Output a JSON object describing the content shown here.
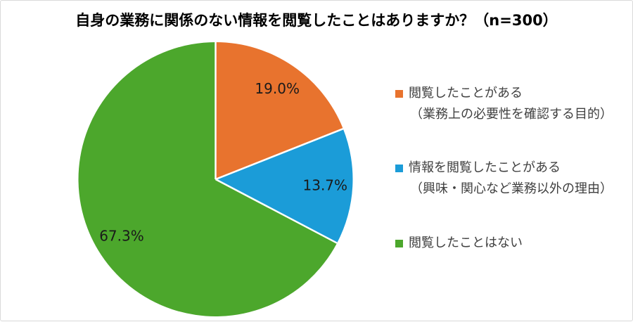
{
  "chart_data": {
    "type": "pie",
    "title": "自身の業務に関係のない情報を閲覧したことはありますか？（n=300）",
    "n": 300,
    "start_angle_deg_from_top": 0,
    "direction": "clockwise",
    "legend_position": "right",
    "background_color": "#ffffff",
    "border_color": "#d9d9d9",
    "slices": [
      {
        "legend_label": "閲覧したことがある",
        "legend_sublabel": "（業務上の必要性を確認する目的）",
        "value_pct": 19.0,
        "data_label": "19.0%",
        "color": "#E8732E"
      },
      {
        "legend_label": "情報を閲覧したことがある",
        "legend_sublabel": "（興味・関心など業務以外の理由）",
        "value_pct": 13.7,
        "data_label": "13.7%",
        "color": "#1B9CD8"
      },
      {
        "legend_label": "閲覧したことはない",
        "legend_sublabel": "",
        "value_pct": 67.3,
        "data_label": "67.3%",
        "color": "#4CA72C"
      }
    ],
    "data_label_color": "#1a1a1a",
    "separator_color": "#ffffff"
  }
}
